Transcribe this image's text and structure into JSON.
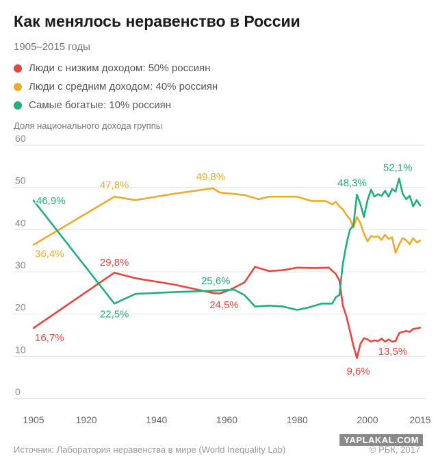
{
  "header": {
    "title": "Как менялось неравенство в России",
    "subtitle": "1905–2015 годы"
  },
  "legend": [
    {
      "label": "Люди с низким доходом: 50% россиян",
      "color": "#e8463c"
    },
    {
      "label": "Люди с средним доходом: 40% россиян",
      "color": "#eeaa2a"
    },
    {
      "label": "Самые богатые: 10% россиян",
      "color": "#1fae7e"
    }
  ],
  "footer": {
    "source": "Источник: Лаборатория неравенства в мире (World Inequality Lab)",
    "copyright": "© РБК, 2017",
    "watermark": "YAPLAKAL.COM"
  },
  "chart_data": {
    "type": "line",
    "ylabel": "Доля национального дохода группы",
    "xlim": [
      1905,
      2015
    ],
    "ylim": [
      0,
      60
    ],
    "x_ticks": [
      1905,
      1920,
      1940,
      1960,
      1980,
      2000,
      2015
    ],
    "y_ticks": [
      0,
      10,
      20,
      30,
      40,
      50,
      60
    ],
    "grid": "horizontal",
    "series": [
      {
        "name": "Люди с низким доходом: 50% россиян",
        "color": "#e8463c",
        "points": [
          [
            1905,
            16.7
          ],
          [
            1928,
            29.8
          ],
          [
            1934,
            28.5
          ],
          [
            1945,
            27.0
          ],
          [
            1956,
            25.0
          ],
          [
            1958,
            24.9
          ],
          [
            1961,
            25.8
          ],
          [
            1965,
            27.5
          ],
          [
            1968,
            31.2
          ],
          [
            1972,
            30.2
          ],
          [
            1976,
            30.4
          ],
          [
            1980,
            31.0
          ],
          [
            1985,
            30.9
          ],
          [
            1989,
            31.0
          ],
          [
            1991,
            29.5
          ],
          [
            1992,
            28.0
          ],
          [
            1993,
            22.0
          ],
          [
            1994,
            19.5
          ],
          [
            1995,
            16.0
          ],
          [
            1996,
            12.5
          ],
          [
            1997,
            9.6
          ],
          [
            1998,
            13.0
          ],
          [
            1999,
            14.3
          ],
          [
            2000,
            14.0
          ],
          [
            2001,
            13.5
          ],
          [
            2002,
            13.8
          ],
          [
            2003,
            13.6
          ],
          [
            2004,
            14.2
          ],
          [
            2005,
            13.5
          ],
          [
            2006,
            14.0
          ],
          [
            2007,
            13.5
          ],
          [
            2008,
            13.6
          ],
          [
            2009,
            15.5
          ],
          [
            2010,
            15.8
          ],
          [
            2011,
            16.0
          ],
          [
            2012,
            15.8
          ],
          [
            2013,
            16.5
          ],
          [
            2014,
            16.6
          ],
          [
            2015,
            16.8
          ]
        ]
      },
      {
        "name": "Люди с средним доходом: 40% россиян",
        "color": "#eeaa2a",
        "points": [
          [
            1905,
            36.4
          ],
          [
            1928,
            47.8
          ],
          [
            1934,
            47.0
          ],
          [
            1945,
            48.5
          ],
          [
            1956,
            49.8
          ],
          [
            1958,
            48.8
          ],
          [
            1965,
            48.2
          ],
          [
            1969,
            47.2
          ],
          [
            1972,
            47.8
          ],
          [
            1976,
            47.8
          ],
          [
            1980,
            47.8
          ],
          [
            1984,
            46.8
          ],
          [
            1988,
            46.8
          ],
          [
            1990,
            46.0
          ],
          [
            1991,
            46.6
          ],
          [
            1992,
            45.5
          ],
          [
            1993,
            44.8
          ],
          [
            1994,
            43.5
          ],
          [
            1995,
            42.5
          ],
          [
            1996,
            40.5
          ],
          [
            1997,
            43.0
          ],
          [
            1998,
            41.5
          ],
          [
            1999,
            39.0
          ],
          [
            2000,
            37.2
          ],
          [
            2001,
            38.5
          ],
          [
            2002,
            38.3
          ],
          [
            2003,
            38.4
          ],
          [
            2004,
            37.6
          ],
          [
            2005,
            38.8
          ],
          [
            2006,
            37.8
          ],
          [
            2007,
            38.2
          ],
          [
            2008,
            34.5
          ],
          [
            2009,
            36.5
          ],
          [
            2010,
            38.0
          ],
          [
            2011,
            37.5
          ],
          [
            2012,
            36.5
          ],
          [
            2013,
            38.0
          ],
          [
            2014,
            37.0
          ],
          [
            2015,
            37.4
          ]
        ]
      },
      {
        "name": "Самые богатые: 10% россиян",
        "color": "#1fae7e",
        "points": [
          [
            1905,
            46.9
          ],
          [
            1928,
            22.5
          ],
          [
            1934,
            24.8
          ],
          [
            1945,
            25.2
          ],
          [
            1958,
            25.6
          ],
          [
            1962,
            25.8
          ],
          [
            1965,
            24.5
          ],
          [
            1968,
            21.8
          ],
          [
            1972,
            22.0
          ],
          [
            1976,
            21.8
          ],
          [
            1980,
            21.0
          ],
          [
            1983,
            21.5
          ],
          [
            1987,
            22.5
          ],
          [
            1990,
            22.5
          ],
          [
            1991,
            24.0
          ],
          [
            1992,
            24.5
          ],
          [
            1993,
            32.0
          ],
          [
            1994,
            36.5
          ],
          [
            1995,
            40.0
          ],
          [
            1996,
            41.0
          ],
          [
            1997,
            48.3
          ],
          [
            1998,
            46.0
          ],
          [
            1999,
            43.0
          ],
          [
            2000,
            47.0
          ],
          [
            2001,
            49.5
          ],
          [
            2002,
            47.8
          ],
          [
            2003,
            48.4
          ],
          [
            2004,
            48.0
          ],
          [
            2005,
            49.2
          ],
          [
            2006,
            47.8
          ],
          [
            2007,
            49.6
          ],
          [
            2008,
            49.0
          ],
          [
            2009,
            52.1
          ],
          [
            2010,
            48.5
          ],
          [
            2011,
            47.2
          ],
          [
            2012,
            48.0
          ],
          [
            2013,
            45.5
          ],
          [
            2014,
            47.0
          ],
          [
            2015,
            45.7
          ]
        ]
      }
    ],
    "annotations": [
      {
        "text": "46,9%",
        "x": 1905,
        "y": 46.9,
        "series": 2
      },
      {
        "text": "36,4%",
        "x": 1905,
        "y": 36.4,
        "series": 1
      },
      {
        "text": "16,7%",
        "x": 1905,
        "y": 16.7,
        "series": 0
      },
      {
        "text": "47,8%",
        "x": 1928,
        "y": 47.8,
        "series": 1
      },
      {
        "text": "29,8%",
        "x": 1928,
        "y": 29.8,
        "series": 0
      },
      {
        "text": "22,5%",
        "x": 1928,
        "y": 22.5,
        "series": 2
      },
      {
        "text": "49,8%",
        "x": 1956,
        "y": 49.8,
        "series": 1
      },
      {
        "text": "25,6%",
        "x": 1958,
        "y": 25.6,
        "series": 2
      },
      {
        "text": "24,5%",
        "x": 1960,
        "y": 24.5,
        "series": 0
      },
      {
        "text": "48,3%",
        "x": 1997,
        "y": 48.3,
        "series": 2
      },
      {
        "text": "52,1%",
        "x": 2009,
        "y": 52.1,
        "series": 2
      },
      {
        "text": "9,6%",
        "x": 1997,
        "y": 9.6,
        "series": 0
      },
      {
        "text": "13,5%",
        "x": 2007,
        "y": 13.5,
        "series": 0
      }
    ]
  }
}
